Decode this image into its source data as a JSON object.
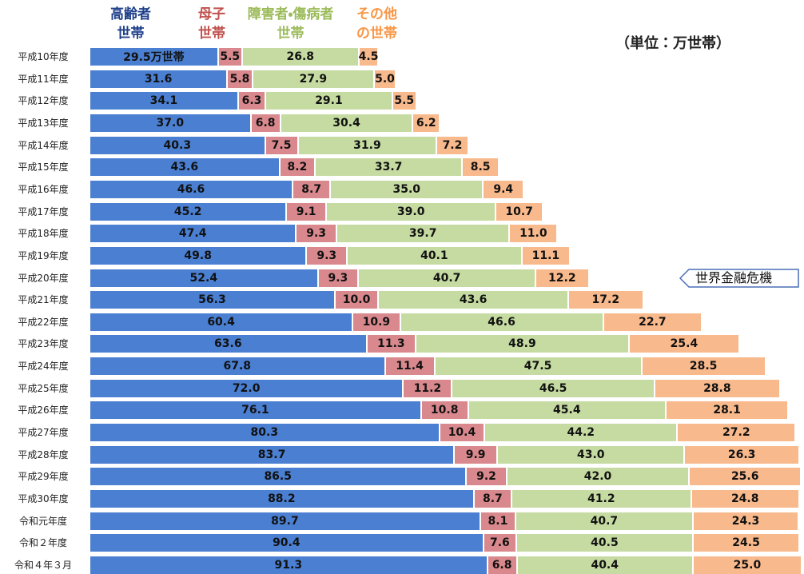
{
  "chart_data": {
    "type": "stacked-barh",
    "unit": "（単位：万世帯）",
    "annotation": "世界金融危機",
    "annotation_category": 10,
    "categories": [
      "平成10年度",
      "平成11年度",
      "平成12年度",
      "平成13年度",
      "平成14年度",
      "平成15年度",
      "平成16年度",
      "平成17年度",
      "平成18年度",
      "平成19年度",
      "平成20年度",
      "平成21年度",
      "平成22年度",
      "平成23年度",
      "平成24年度",
      "平成25年度",
      "平成26年度",
      "平成27年度",
      "平成28年度",
      "平成29年度",
      "平成30年度",
      "令和元年度",
      "令和２年度",
      "令和４年３月"
    ],
    "series": [
      {
        "name": "高齢者世帯",
        "color": "#4a7fd2",
        "legend_color": "#1f3f8a",
        "values": [
          29.5,
          31.6,
          34.1,
          37.0,
          40.3,
          43.6,
          46.6,
          45.2,
          47.4,
          49.8,
          52.4,
          56.3,
          60.4,
          63.6,
          67.8,
          72.0,
          76.1,
          80.3,
          83.7,
          86.5,
          88.2,
          89.7,
          90.4,
          91.3
        ],
        "value_labels": [
          "29.5万世帯",
          "31.6",
          "34.1",
          "37.0",
          "40.3",
          "43.6",
          "46.6",
          "45.2",
          "47.4",
          "49.8",
          "52.4",
          "56.3",
          "60.4",
          "63.6",
          "67.8",
          "72.0",
          "76.1",
          "80.3",
          "83.7",
          "86.5",
          "88.2",
          "89.7",
          "90.4",
          "91.3"
        ]
      },
      {
        "name": "母子世帯",
        "color": "#d9898d",
        "legend_color": "#c0504d",
        "values": [
          5.5,
          5.8,
          6.3,
          6.8,
          7.5,
          8.2,
          8.7,
          9.1,
          9.3,
          9.3,
          9.3,
          10.0,
          10.9,
          11.3,
          11.4,
          11.2,
          10.8,
          10.4,
          9.9,
          9.2,
          8.7,
          8.1,
          7.6,
          6.8
        ],
        "value_labels": [
          "5.5",
          "5.8",
          "6.3",
          "6.8",
          "7.5",
          "8.2",
          "8.7",
          "9.1",
          "9.3",
          "9.3",
          "9.3",
          "10.0",
          "10.9",
          "11.3",
          "11.4",
          "11.2",
          "10.8",
          "10.4",
          "9.9",
          "9.2",
          "8.7",
          "8.1",
          "7.6",
          "6.8"
        ]
      },
      {
        "name": "障害者・傷病者世帯",
        "color": "#c6dba2",
        "legend_color": "#9bbb59",
        "values": [
          26.8,
          27.9,
          29.1,
          30.4,
          31.9,
          33.7,
          35.0,
          39.0,
          39.7,
          40.1,
          40.7,
          43.6,
          46.6,
          48.9,
          47.5,
          46.5,
          45.4,
          44.2,
          43.0,
          42.0,
          41.2,
          40.7,
          40.5,
          40.4
        ],
        "value_labels": [
          "26.8",
          "27.9",
          "29.1",
          "30.4",
          "31.9",
          "33.7",
          "35.0",
          "39.0",
          "39.7",
          "40.1",
          "40.7",
          "43.6",
          "46.6",
          "48.9",
          "47.5",
          "46.5",
          "45.4",
          "44.2",
          "43.0",
          "42.0",
          "41.2",
          "40.7",
          "40.5",
          "40.4"
        ]
      },
      {
        "name": "その他の世帯",
        "color": "#f8b98c",
        "legend_color": "#f79646",
        "values": [
          4.5,
          5.0,
          5.5,
          6.2,
          7.2,
          8.5,
          9.4,
          10.7,
          11.0,
          11.1,
          12.2,
          17.2,
          22.7,
          25.4,
          28.5,
          28.8,
          28.1,
          27.2,
          26.3,
          25.6,
          24.8,
          24.3,
          24.5,
          25.0
        ],
        "value_labels": [
          "4.5",
          "5.0",
          "5.5",
          "6.2",
          "7.2",
          "8.5",
          "9.4",
          "10.7",
          "11.0",
          "11.1",
          "12.2",
          "17.2",
          "22.7",
          "25.4",
          "28.5",
          "28.8",
          "28.1",
          "27.2",
          "26.3",
          "25.6",
          "24.8",
          "24.3",
          "24.5",
          "25.0"
        ]
      }
    ]
  }
}
